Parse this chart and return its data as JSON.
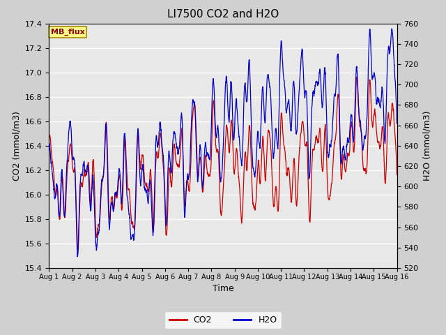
{
  "title": "LI7500 CO2 and H2O",
  "xlabel": "Time",
  "ylabel_left": "CO2 (mmol/m3)",
  "ylabel_right": "H2O (mmol/m3)",
  "co2_color": "#cc0000",
  "h2o_color": "#0000cc",
  "co2_ylim": [
    15.4,
    17.4
  ],
  "h2o_ylim": [
    520,
    760
  ],
  "co2_yticks": [
    15.4,
    15.6,
    15.8,
    16.0,
    16.2,
    16.4,
    16.6,
    16.8,
    17.0,
    17.2,
    17.4
  ],
  "h2o_yticks": [
    520,
    540,
    560,
    580,
    600,
    620,
    640,
    660,
    680,
    700,
    720,
    740,
    760
  ],
  "x_tick_labels": [
    "Aug 1",
    "Aug 2",
    "Aug 3",
    "Aug 4",
    "Aug 5",
    "Aug 6",
    "Aug 7",
    "Aug 8",
    "Aug 9",
    "Aug 10",
    "Aug 11",
    "Aug 12",
    "Aug 13",
    "Aug 14",
    "Aug 15",
    "Aug 16"
  ],
  "watermark": "MB_flux",
  "bg_color": "#d0d0d0",
  "plot_bg_color": "#e8e8e8",
  "line_width": 0.9,
  "n_days": 15,
  "points_per_day": 144
}
